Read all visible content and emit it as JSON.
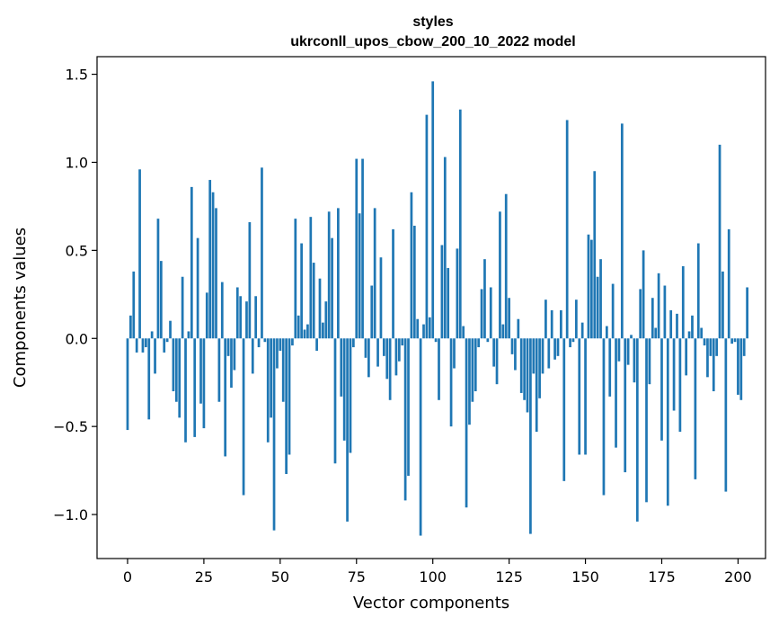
{
  "chart_data": {
    "type": "bar",
    "title": "styles",
    "subtitle": "ukrconll_upos_cbow_200_10_2022 model",
    "xlabel": "Vector components",
    "ylabel": "Components values",
    "xlim": [
      -10,
      209
    ],
    "ylim": [
      -1.25,
      1.6
    ],
    "xticks": [
      0,
      25,
      50,
      75,
      100,
      125,
      150,
      175,
      200
    ],
    "yticks": [
      -1.0,
      -0.5,
      0.0,
      0.5,
      1.0,
      1.5
    ],
    "xtick_labels": [
      "0",
      "25",
      "50",
      "75",
      "100",
      "125",
      "150",
      "175",
      "200"
    ],
    "ytick_labels": [
      "−1.0",
      "−0.5",
      "0.0",
      "0.5",
      "1.0",
      "1.5"
    ],
    "grid": false,
    "bar_color": "#1f77b4",
    "values": [
      -0.52,
      0.13,
      0.38,
      -0.08,
      0.96,
      -0.08,
      -0.05,
      -0.46,
      0.04,
      -0.2,
      0.68,
      0.44,
      -0.08,
      -0.02,
      0.1,
      -0.3,
      -0.36,
      -0.45,
      0.35,
      -0.59,
      0.04,
      0.86,
      -0.56,
      0.57,
      -0.37,
      -0.51,
      0.26,
      0.9,
      0.83,
      0.74,
      -0.36,
      0.32,
      -0.67,
      -0.1,
      -0.28,
      -0.18,
      0.29,
      0.24,
      -0.89,
      0.21,
      0.66,
      -0.2,
      0.24,
      -0.05,
      0.97,
      -0.02,
      -0.59,
      -0.45,
      -1.09,
      -0.17,
      -0.07,
      -0.36,
      -0.77,
      -0.66,
      -0.04,
      0.68,
      0.13,
      0.54,
      0.05,
      0.08,
      0.69,
      0.43,
      -0.07,
      0.34,
      0.09,
      0.21,
      0.72,
      0.57,
      -0.71,
      0.74,
      -0.33,
      -0.58,
      -1.04,
      -0.65,
      -0.05,
      1.02,
      0.71,
      1.02,
      -0.11,
      -0.22,
      0.3,
      0.74,
      -0.16,
      0.46,
      -0.1,
      -0.23,
      -0.35,
      0.62,
      -0.21,
      -0.13,
      -0.04,
      -0.92,
      -0.78,
      0.83,
      0.64,
      0.11,
      -1.12,
      0.08,
      1.27,
      0.12,
      1.46,
      -0.02,
      -0.35,
      0.53,
      1.03,
      0.4,
      -0.5,
      -0.17,
      0.51,
      1.3,
      0.07,
      -0.96,
      -0.49,
      -0.36,
      -0.3,
      -0.05,
      0.28,
      0.45,
      -0.02,
      0.29,
      -0.16,
      -0.26,
      0.72,
      0.08,
      0.82,
      0.23,
      -0.09,
      -0.18,
      0.11,
      -0.31,
      -0.35,
      -0.42,
      -1.11,
      -0.2,
      -0.53,
      -0.34,
      -0.2,
      0.22,
      -0.17,
      0.16,
      -0.12,
      -0.1,
      0.16,
      -0.81,
      1.24,
      -0.05,
      -0.02,
      0.22,
      -0.66,
      0.09,
      -0.66,
      0.59,
      0.56,
      0.95,
      0.35,
      0.45,
      -0.89,
      0.07,
      -0.33,
      0.31,
      -0.62,
      -0.13,
      1.22,
      -0.76,
      -0.15,
      0.02,
      -0.25,
      -1.04,
      0.28,
      0.5,
      -0.93,
      -0.26,
      0.23,
      0.06,
      0.37,
      -0.58,
      0.3,
      -0.95,
      0.16,
      -0.41,
      0.14,
      -0.53,
      0.41,
      -0.21,
      0.04,
      0.13,
      -0.8,
      0.54,
      0.06,
      -0.04,
      -0.22,
      -0.1,
      -0.3,
      -0.1,
      1.1,
      0.38,
      -0.87,
      0.62,
      -0.03,
      -0.02,
      -0.32,
      -0.35,
      -0.1,
      0.29
    ]
  }
}
